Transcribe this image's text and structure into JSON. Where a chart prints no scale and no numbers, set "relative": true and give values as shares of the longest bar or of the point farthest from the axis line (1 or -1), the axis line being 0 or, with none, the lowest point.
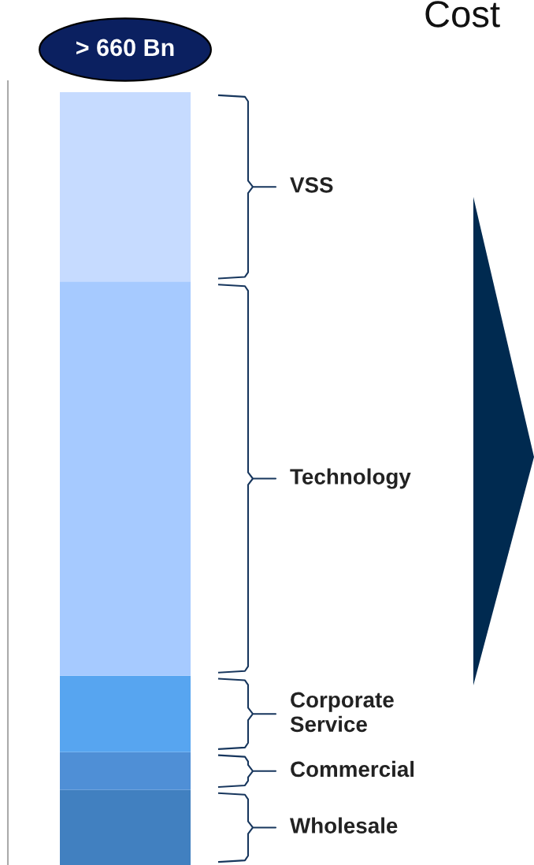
{
  "chart_data": {
    "type": "bar",
    "title": "Cost",
    "stacked": true,
    "relative": true,
    "categories": [
      null
    ],
    "series": [
      {
        "name": "Wholesale",
        "color": "#4180c0",
        "values": [
          0.097
        ]
      },
      {
        "name": "Commercial",
        "color": "#4f8fd6",
        "values": [
          0.049
        ]
      },
      {
        "name": "Corporate Service",
        "color": "#57a5f0",
        "values": [
          0.099
        ]
      },
      {
        "name": "Technology",
        "color": "#a6caff",
        "values": [
          0.51
        ]
      },
      {
        "name": "VSS",
        "color": "#c6dbff",
        "values": [
          0.245
        ]
      }
    ],
    "totals": [
      "> 660 Bn"
    ],
    "legend": false
  }
}
